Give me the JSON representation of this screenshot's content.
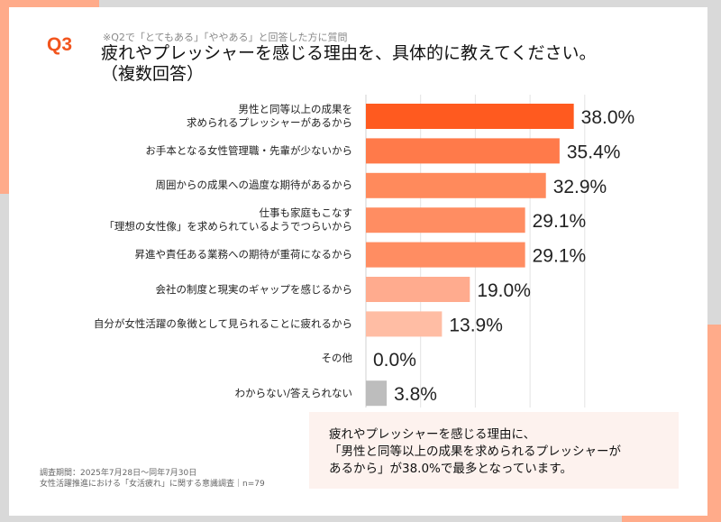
{
  "header": {
    "question_number": "Q3",
    "note": "※Q2で「とてもある」「ややある」と回答した方に質問",
    "title_line1": "疲れやプレッシャーを感じる理由を、具体的に教えてください。",
    "title_line2": "（複数回答）"
  },
  "colors": {
    "accent": "#ffab8a",
    "brand": "#f2551e",
    "background": "#d9d9d9",
    "callout_bg": "#fdf2ee"
  },
  "chart_data": {
    "type": "bar",
    "orientation": "horizontal",
    "title": "",
    "xlabel": "",
    "ylabel": "",
    "xlim": [
      0,
      40
    ],
    "grid": true,
    "categories": [
      [
        "男性と同等以上の成果を",
        "求められるプレッシャーがあるから"
      ],
      [
        "お手本となる女性管理職・先輩が少ないから"
      ],
      [
        "周囲からの成果への過度な期待があるから"
      ],
      [
        "仕事も家庭もこなす",
        "「理想の女性像」を求められているようでつらいから"
      ],
      [
        "昇進や責任ある業務への期待が重荷になるから"
      ],
      [
        "会社の制度と現実のギャップを感じるから"
      ],
      [
        "自分が女性活躍の象徴として見られることに疲れるから"
      ],
      [
        "その他"
      ],
      [
        "わからない/答えられない"
      ]
    ],
    "values": [
      38.0,
      35.4,
      32.9,
      29.1,
      29.1,
      19.0,
      13.9,
      0.0,
      3.8
    ],
    "labels": [
      "38.0%",
      "35.4%",
      "32.9%",
      "29.1%",
      "29.1%",
      "19.0%",
      "13.9%",
      "0.0%",
      "3.8%"
    ],
    "bar_colors": [
      "#ff5a1f",
      "#ff7a4a",
      "#ff8a5c",
      "#ff8d62",
      "#ff8d62",
      "#ffab8e",
      "#ffbda4",
      "#ffbda4",
      "#bdbdbd"
    ]
  },
  "footer": {
    "line1": "調査期間：2025年7月28日〜同年7月30日",
    "line2": "女性活躍推進における「女活疲れ」に関する意識調査｜n=79"
  },
  "callout": {
    "line1": "疲れやプレッシャーを感じる理由に、",
    "line2": "「男性と同等以上の成果を求められるプレッシャーが",
    "line3": "あるから」が38.0%で最多となっています。"
  }
}
